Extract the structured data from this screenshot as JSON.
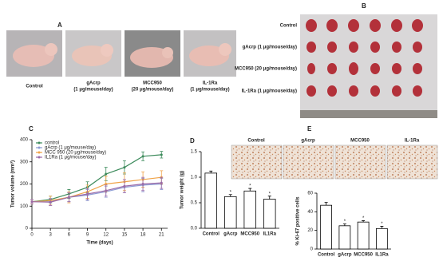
{
  "panel_labels": [
    "A",
    "B",
    "C",
    "D",
    "E"
  ],
  "photos": {
    "A": {
      "captions": [
        [
          "Control"
        ],
        [
          "gAcrp",
          "(1 μg/mouse/day)"
        ],
        [
          "MCC950",
          "(20 μg/mouse/day)"
        ],
        [
          "IL-1Ra",
          "(1 μg/mouse/day)"
        ]
      ]
    },
    "B": {
      "rows": [
        "Control",
        "gAcrp (1 μg/mouse/day)",
        "MCC950 (20 μg/mouse/day)",
        "IL-1Ra (1 μg/mouse/day)"
      ]
    },
    "E": {
      "captions": [
        "Control",
        "gAcrp",
        "MCC950",
        "IL-1Ra"
      ]
    }
  },
  "chart_data": [
    {
      "type": "line",
      "xlabel": "Time (days)",
      "ylabel": "Tumor volume (mm³)",
      "x": [
        0,
        3,
        6,
        9,
        12,
        15,
        18,
        21
      ],
      "xlim": [
        0,
        22
      ],
      "xticks": [
        0,
        3,
        6,
        9,
        12,
        15,
        18,
        21
      ],
      "ylim": [
        0,
        400
      ],
      "yticks": [
        0,
        100,
        200,
        300,
        400
      ],
      "legend": "upper left",
      "series": [
        {
          "name": "control",
          "color": "#3d8b5c",
          "values": [
            120,
            130,
            155,
            185,
            245,
            275,
            325,
            332
          ],
          "errors": [
            10,
            15,
            20,
            25,
            30,
            30,
            20,
            15
          ]
        },
        {
          "name": "gAcrp (1 μg/mouse/day)",
          "color": "#8d9bd3",
          "values": [
            120,
            120,
            140,
            150,
            165,
            185,
            195,
            200
          ],
          "errors": [
            10,
            15,
            20,
            25,
            25,
            25,
            30,
            25
          ]
        },
        {
          "name": "MCC 950 (20 μg/mouse/day)",
          "color": "#f0a347",
          "values": [
            120,
            125,
            140,
            165,
            200,
            210,
            220,
            230
          ],
          "errors": [
            10,
            20,
            25,
            30,
            35,
            40,
            35,
            30
          ]
        },
        {
          "name": "IL1Ra (1 μg/mouse/day)",
          "color": "#9a6aa8",
          "values": [
            120,
            118,
            140,
            155,
            170,
            190,
            200,
            205
          ],
          "errors": [
            10,
            15,
            20,
            25,
            25,
            30,
            30,
            25
          ]
        }
      ]
    },
    {
      "type": "bar",
      "ylabel": "Tumor weight (g)",
      "categories": [
        "Control",
        "gAcrp",
        "MCC950",
        "IL1Ra"
      ],
      "values": [
        1.08,
        0.62,
        0.73,
        0.57
      ],
      "errors": [
        0.04,
        0.04,
        0.05,
        0.06
      ],
      "ylim": [
        0,
        1.5
      ],
      "yticks": [
        {
          "value": 0,
          "label": "0.0"
        },
        0.5,
        {
          "value": 1,
          "label": "1.0"
        },
        1.5
      ],
      "color": "#ffffff",
      "significance_mark": "*",
      "significant": [
        false,
        true,
        true,
        true
      ]
    },
    {
      "type": "bar",
      "ylabel": "% Ki-67 positive cells",
      "categories": [
        "Control",
        "gAcrp",
        "MCC950",
        "IL1Ra"
      ],
      "values": [
        47,
        25,
        29,
        22
      ],
      "errors": [
        3,
        2,
        1.5,
        2.5
      ],
      "ylim": [
        0,
        60
      ],
      "yticks": [
        0,
        20,
        40,
        60
      ],
      "color": "#ffffff",
      "significance_mark": "*",
      "significant": [
        false,
        true,
        true,
        true
      ]
    }
  ]
}
